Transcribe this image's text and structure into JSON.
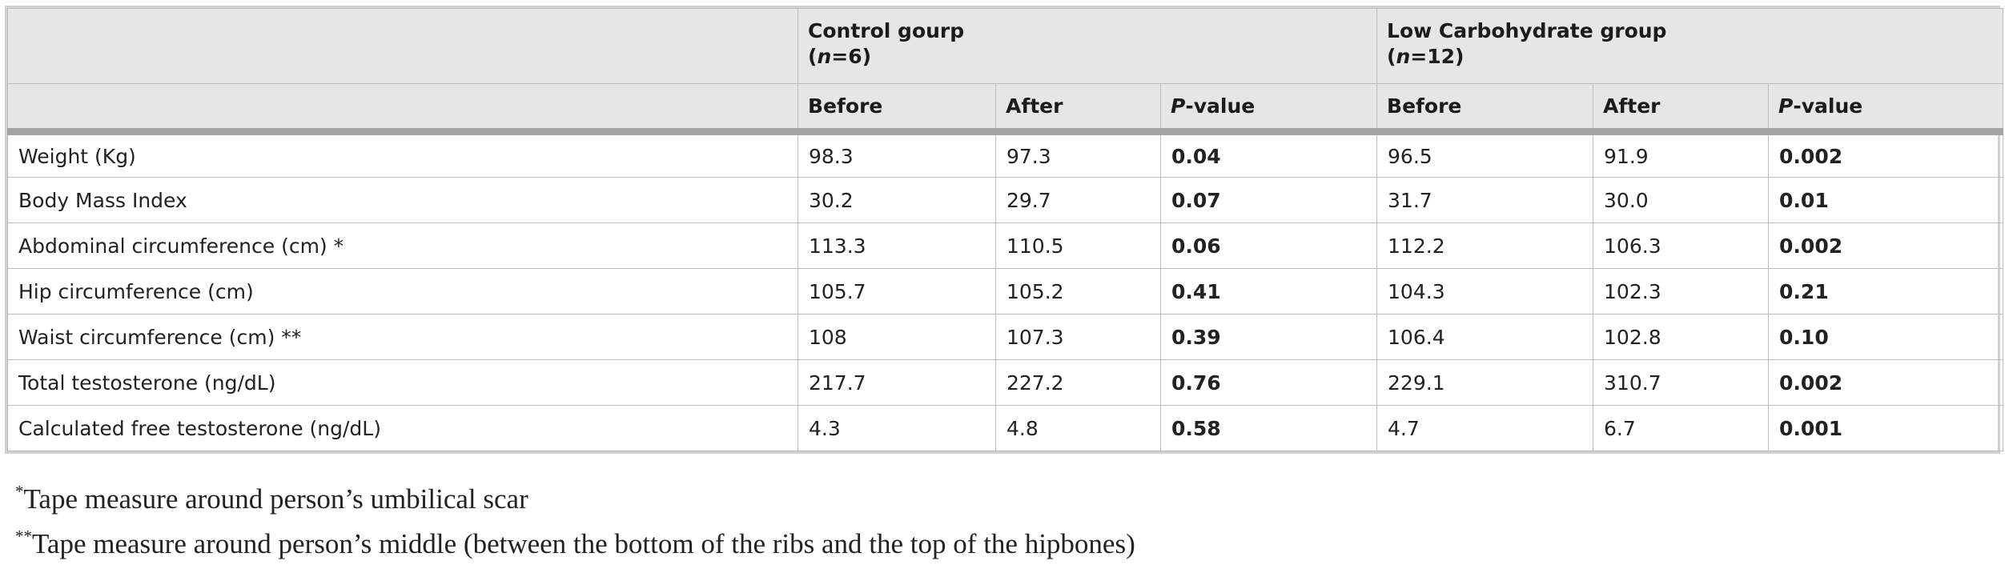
{
  "header": {
    "control_group": "Control gourp",
    "control_n_open": "(",
    "control_n_var": "n",
    "control_n_value": "=6)",
    "lowcarb_group": "Low Carbohydrate group",
    "lowcarb_n_open": "(",
    "lowcarb_n_var": "n",
    "lowcarb_n_value": "=12)",
    "before": "Before",
    "after": "After",
    "p_letter": "P",
    "p_rest": "-value"
  },
  "rows": [
    {
      "label": "Weight (Kg)",
      "c_before": "98.3",
      "c_after": "97.3",
      "c_p": "0.04",
      "l_before": "96.5",
      "l_after": "91.9",
      "l_p": "0.002"
    },
    {
      "label": "Body Mass Index",
      "c_before": "30.2",
      "c_after": "29.7",
      "c_p": "0.07",
      "l_before": "31.7",
      "l_after": "30.0",
      "l_p": "0.01"
    },
    {
      "label": "Abdominal circumference (cm) *",
      "c_before": "113.3",
      "c_after": "110.5",
      "c_p": "0.06",
      "l_before": "112.2",
      "l_after": "106.3",
      "l_p": "0.002"
    },
    {
      "label": "Hip circumference (cm)",
      "c_before": "105.7",
      "c_after": "105.2",
      "c_p": "0.41",
      "l_before": "104.3",
      "l_after": "102.3",
      "l_p": "0.21"
    },
    {
      "label": "Waist circumference (cm) **",
      "c_before": "108",
      "c_after": "107.3",
      "c_p": "0.39",
      "l_before": "106.4",
      "l_after": "102.8",
      "l_p": "0.10"
    },
    {
      "label": "Total testosterone (ng/dL)",
      "c_before": "217.7",
      "c_after": "227.2",
      "c_p": "0.76",
      "l_before": "229.1",
      "l_after": "310.7",
      "l_p": "0.002"
    },
    {
      "label": "Calculated free testosterone (ng/dL)",
      "c_before": "4.3",
      "c_after": "4.8",
      "c_p": "0.58",
      "l_before": "4.7",
      "l_after": "6.7",
      "l_p": "0.001"
    }
  ],
  "footnotes": [
    {
      "mark": "*",
      "text": "Tape measure around person’s umbilical scar"
    },
    {
      "mark": "**",
      "text": "Tape measure around person’s middle (between the bottom of the ribs and the top of the hipbones)"
    }
  ]
}
